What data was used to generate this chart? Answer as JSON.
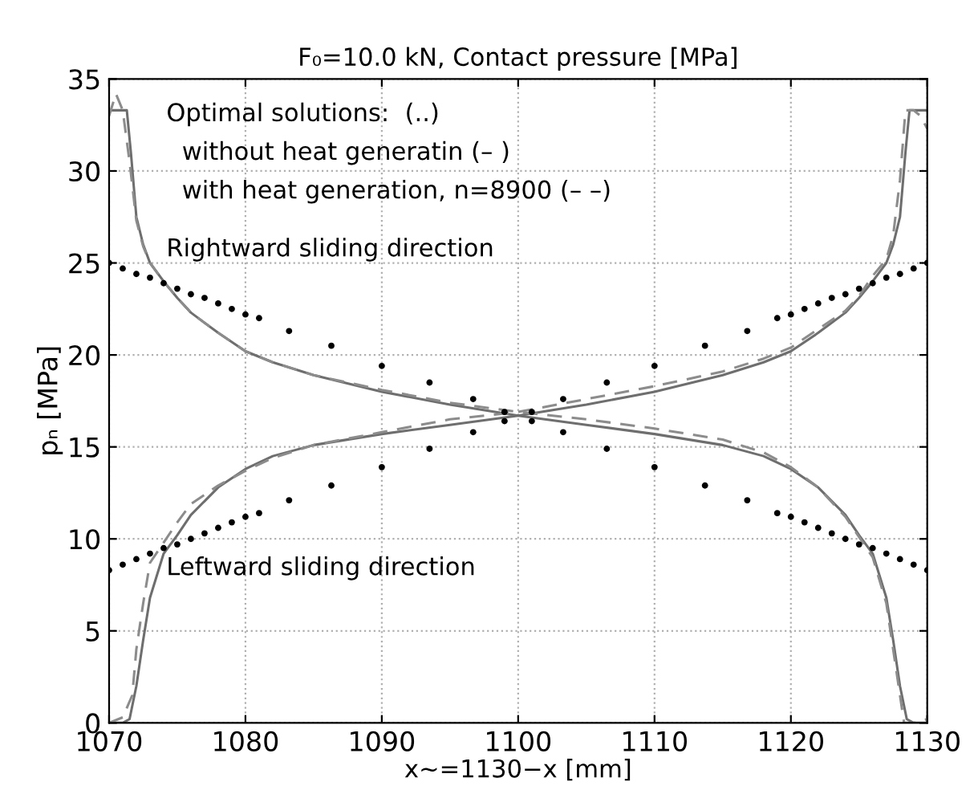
{
  "chart_data": {
    "type": "line",
    "title": "F₀=10.0 kN, Contact pressure [MPa]",
    "xlabel": "x~=1130−x [mm]",
    "ylabel": "pₙ [MPa]",
    "xlim": [
      1070,
      1130
    ],
    "xticks": [
      1070,
      1080,
      1090,
      1100,
      1110,
      1120,
      1130
    ],
    "ylim": [
      0,
      35
    ],
    "yticks": [
      0,
      5,
      10,
      15,
      20,
      25,
      30,
      35
    ],
    "grid": true,
    "legend": false,
    "annotations": [
      "Optimal solutions:  (..)",
      "  without heat generatin (– )",
      "  with heat generation, n=8900 (– –)",
      "Rightward sliding direction",
      "Leftward sliding direction"
    ],
    "series": [
      {
        "type": "scatter",
        "marker": "circle",
        "color": "#000000",
        "x": [
          1070,
          1071,
          1072,
          1073,
          1074,
          1075,
          1076,
          1077,
          1078,
          1079,
          1080,
          1081,
          1083.2,
          1086.3,
          1090,
          1093.5,
          1096.7,
          1099,
          1101,
          1103.3,
          1106.5,
          1110,
          1113.7,
          1116.8,
          1119,
          1120,
          1121,
          1122,
          1123,
          1124,
          1125,
          1126,
          1127,
          1128,
          1129,
          1130
        ],
        "values": [
          25.0,
          24.7,
          24.4,
          24.2,
          23.9,
          23.6,
          23.3,
          23.1,
          22.8,
          22.5,
          22.2,
          22.0,
          21.3,
          20.5,
          19.4,
          18.5,
          17.6,
          16.9,
          16.4,
          15.8,
          14.9,
          13.9,
          12.9,
          12.1,
          11.4,
          11.2,
          10.9,
          10.6,
          10.3,
          10.0,
          9.7,
          9.5,
          9.2,
          8.9,
          8.6,
          8.3
        ]
      },
      {
        "type": "scatter",
        "marker": "circle",
        "color": "#000000",
        "x": [
          1070,
          1071,
          1072,
          1073,
          1074,
          1075,
          1076,
          1077,
          1078,
          1079,
          1080,
          1081,
          1083.2,
          1086.3,
          1090,
          1093.5,
          1096.7,
          1099,
          1101,
          1103.3,
          1106.5,
          1110,
          1113.7,
          1116.8,
          1119,
          1120,
          1121,
          1122,
          1123,
          1124,
          1125,
          1126,
          1127,
          1128,
          1129,
          1130
        ],
        "values": [
          8.3,
          8.6,
          8.9,
          9.2,
          9.5,
          9.7,
          10.0,
          10.3,
          10.6,
          10.9,
          11.2,
          11.4,
          12.1,
          12.9,
          13.9,
          14.9,
          15.8,
          16.4,
          16.9,
          17.6,
          18.5,
          19.4,
          20.5,
          21.3,
          22.0,
          22.2,
          22.5,
          22.8,
          23.1,
          23.3,
          23.6,
          23.9,
          24.2,
          24.4,
          24.7,
          25.0
        ]
      },
      {
        "line_style": "solid",
        "color": "#6e6e6e",
        "x": [
          1070,
          1071.3,
          1071.6,
          1072,
          1072.5,
          1073,
          1074,
          1075,
          1076,
          1078,
          1080,
          1082,
          1085,
          1090,
          1095,
          1100,
          1105,
          1110,
          1115,
          1118,
          1120,
          1122,
          1124,
          1125,
          1126,
          1127,
          1127.5,
          1128,
          1128.5,
          1129,
          1130
        ],
        "values": [
          33.3,
          33.3,
          31.0,
          27.5,
          26.0,
          25.0,
          24.0,
          23.1,
          22.3,
          21.2,
          20.2,
          19.6,
          18.9,
          18.0,
          17.3,
          16.7,
          16.2,
          15.7,
          15.1,
          14.5,
          13.8,
          12.8,
          11.3,
          10.2,
          9.2,
          6.8,
          4.5,
          2.0,
          0.2,
          0.0,
          0.0
        ]
      },
      {
        "line_style": "solid",
        "color": "#6e6e6e",
        "x": [
          1070,
          1071,
          1071.5,
          1072,
          1072.5,
          1073,
          1074,
          1075,
          1076,
          1078,
          1080,
          1082,
          1085,
          1090,
          1095,
          1100,
          1105,
          1110,
          1115,
          1118,
          1120,
          1122,
          1124,
          1125,
          1126,
          1127,
          1127.5,
          1128,
          1128.4,
          1128.7,
          1130
        ],
        "values": [
          0.0,
          0.0,
          0.2,
          2.0,
          4.5,
          6.8,
          9.2,
          10.2,
          11.3,
          12.8,
          13.8,
          14.5,
          15.1,
          15.7,
          16.2,
          16.7,
          17.3,
          18.0,
          18.9,
          19.6,
          20.2,
          21.2,
          22.3,
          23.1,
          24.0,
          25.0,
          26.0,
          27.5,
          31.0,
          33.3,
          33.3
        ]
      },
      {
        "line_style": "dashed",
        "color": "#8c8c8c",
        "x": [
          1070,
          1070.5,
          1071,
          1071.5,
          1072,
          1072.5,
          1073,
          1074,
          1075,
          1076,
          1078,
          1080,
          1082,
          1085,
          1090,
          1095,
          1100,
          1105,
          1110,
          1115,
          1118,
          1120,
          1122,
          1124,
          1125,
          1126,
          1127,
          1127.5,
          1128,
          1128.3,
          1129,
          1130
        ],
        "values": [
          33.0,
          34.2,
          33.3,
          30.5,
          27.3,
          25.9,
          25.0,
          24.0,
          23.1,
          22.3,
          21.2,
          20.2,
          19.6,
          18.9,
          18.1,
          17.4,
          16.9,
          16.5,
          16.0,
          15.4,
          14.7,
          13.9,
          12.8,
          11.2,
          10.1,
          9.0,
          6.5,
          4.0,
          1.5,
          0.0,
          0.0,
          0.2
        ]
      },
      {
        "line_style": "dashed",
        "color": "#8c8c8c",
        "x": [
          1070,
          1071,
          1071.7,
          1072,
          1072.5,
          1073,
          1074,
          1075,
          1076,
          1078,
          1080,
          1082,
          1085,
          1090,
          1095,
          1100,
          1105,
          1110,
          1115,
          1118,
          1120,
          1122,
          1124,
          1125,
          1126,
          1127,
          1127.5,
          1128,
          1128.4,
          1129,
          1129.5,
          1130
        ],
        "values": [
          0.0,
          0.3,
          1.5,
          4.0,
          6.5,
          8.7,
          9.8,
          10.9,
          11.9,
          12.9,
          13.7,
          14.4,
          15.1,
          15.8,
          16.5,
          16.9,
          17.6,
          18.3,
          19.1,
          19.8,
          20.4,
          21.4,
          22.4,
          23.2,
          24.3,
          25.2,
          26.5,
          29.5,
          33.3,
          33.3,
          33.0,
          32.3
        ]
      }
    ]
  }
}
